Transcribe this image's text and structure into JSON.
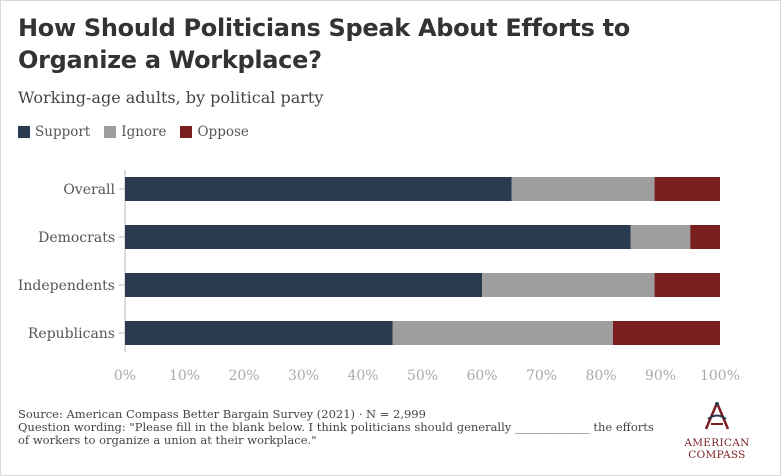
{
  "title": "How Should Politicians Speak About Efforts to Organize a Workplace?",
  "subtitle": "Working-age adults, by political party",
  "legend": [
    {
      "label": "Support",
      "color": "#2a3a4f"
    },
    {
      "label": "Ignore",
      "color": "#9e9e9e"
    },
    {
      "label": "Oppose",
      "color": "#7a1f1f"
    }
  ],
  "footnote": {
    "source": "Source: American Compass Better Bargain Survey (2021) · N = 2,999",
    "question": "Question wording: \"Please fill in the blank below. I think politicians should generally _____________ the efforts of workers to organize a union at their workplace.\""
  },
  "logo": {
    "line1": "AMERICAN",
    "line2": "COMPASS"
  },
  "chart_data": {
    "type": "bar",
    "orientation": "horizontal",
    "stacked": true,
    "categories": [
      "Overall",
      "Democrats",
      "Independents",
      "Republicans"
    ],
    "series": [
      {
        "name": "Support",
        "values": [
          65,
          85,
          60,
          45
        ]
      },
      {
        "name": "Ignore",
        "values": [
          24,
          10,
          29,
          37
        ]
      },
      {
        "name": "Oppose",
        "values": [
          11,
          5,
          11,
          18
        ]
      }
    ],
    "xlim": [
      0,
      100
    ],
    "xticks": [
      "0%",
      "10%",
      "20%",
      "30%",
      "40%",
      "50%",
      "60%",
      "70%",
      "80%",
      "90%",
      "100%"
    ],
    "grid": false
  }
}
